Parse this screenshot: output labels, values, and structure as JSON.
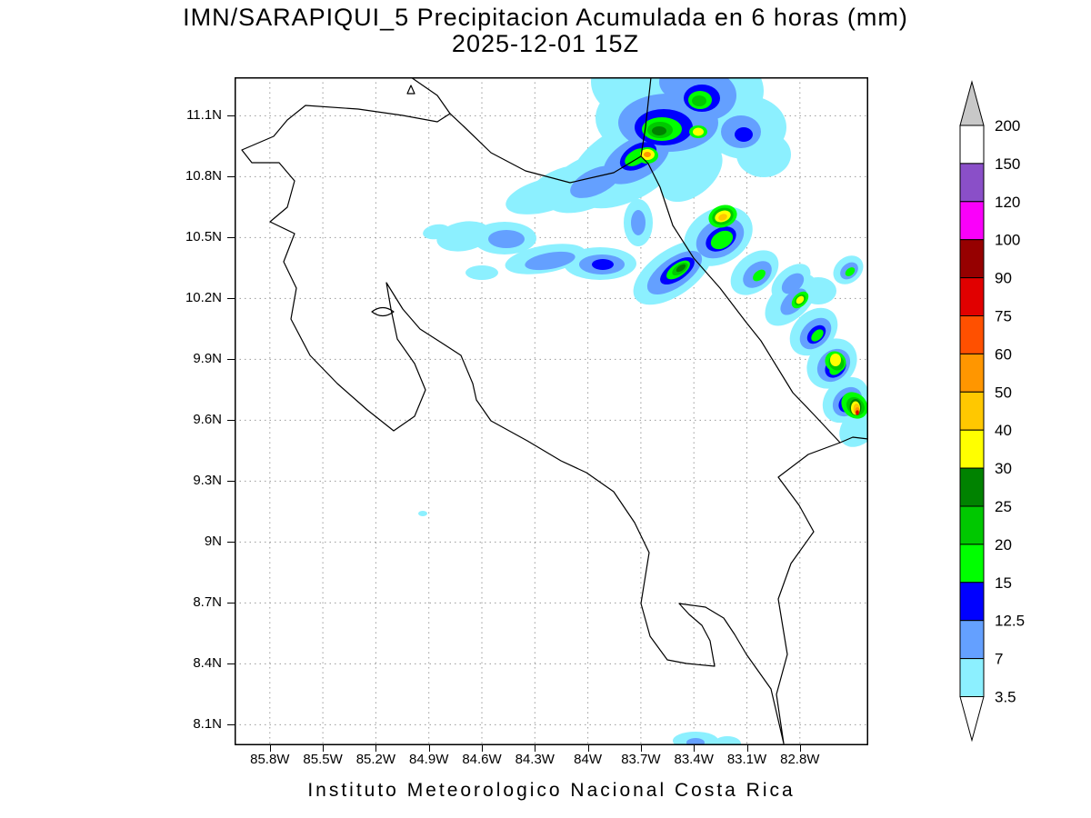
{
  "header": {
    "title_line1": "IMN/SARAPIQUI_5 Precipitacion Acumulada en 6 horas (mm)",
    "title_line2": "2025-12-01 15Z"
  },
  "footer": {
    "caption": "Instituto Meteorologico Nacional Costa Rica"
  },
  "chart_data": {
    "type": "heatmap",
    "title": "IMN/SARAPIQUI_5 Precipitacion Acumulada en 6 horas (mm)",
    "valid_time": "2025-12-01 15Z",
    "units": "mm",
    "region": "Costa Rica",
    "grid": true,
    "legend_position": "right",
    "xlabel_ticks": [
      "85.8W",
      "85.5W",
      "85.2W",
      "84.9W",
      "84.6W",
      "84.3W",
      "84W",
      "83.7W",
      "83.4W",
      "83.1W",
      "82.8W"
    ],
    "ylabel_ticks": [
      "11.1N",
      "10.8N",
      "10.5N",
      "10.2N",
      "9.9N",
      "9.6N",
      "9.3N",
      "9N",
      "8.7N",
      "8.4N",
      "8.1N"
    ],
    "colorbar": {
      "over_triangle_color": "#c8c8c8",
      "under_triangle_color": "#ffffff",
      "bottom_label": "3.5",
      "segments_top_to_bottom": [
        {
          "top_label": "200",
          "color": "#ffffff",
          "range_mm": "150-200"
        },
        {
          "top_label": "150",
          "color": "#8a4fc8",
          "range_mm": "120-150"
        },
        {
          "top_label": "120",
          "color": "#fa00fa",
          "range_mm": "100-120"
        },
        {
          "top_label": "100",
          "color": "#960000",
          "range_mm": "90-100"
        },
        {
          "top_label": "90",
          "color": "#e10000",
          "range_mm": "75-90"
        },
        {
          "top_label": "75",
          "color": "#ff5000",
          "range_mm": "60-75"
        },
        {
          "top_label": "60",
          "color": "#ff9600",
          "range_mm": "50-60"
        },
        {
          "top_label": "50",
          "color": "#ffc800",
          "range_mm": "40-50"
        },
        {
          "top_label": "40",
          "color": "#ffff00",
          "range_mm": "30-40"
        },
        {
          "top_label": "30",
          "color": "#008200",
          "range_mm": "25-30"
        },
        {
          "top_label": "25",
          "color": "#00c800",
          "range_mm": "20-25"
        },
        {
          "top_label": "20",
          "color": "#00ff00",
          "range_mm": "15-20"
        },
        {
          "top_label": "15",
          "color": "#0000ff",
          "range_mm": "12.5-15"
        },
        {
          "top_label": "12.5",
          "color": "#64a0ff",
          "range_mm": "7-12.5"
        },
        {
          "top_label": "7",
          "color": "#8cf0ff",
          "range_mm": "3.5-7"
        }
      ]
    }
  },
  "map": {
    "coastline_color": "#000000",
    "grid_color": "#9a9a9a",
    "palette": {
      "cyan": "#8cf0ff",
      "mblue": "#64a0ff",
      "blue": "#0000ff",
      "bgreen": "#00ff00",
      "green": "#00c800",
      "dgreen": "#008200",
      "yellow": "#ffff00",
      "amber": "#ffc800",
      "orange": "#ff9600",
      "red": "#e10000"
    },
    "coastlines": [
      "M58,47 L78,31 L136,35 L185,42 L223,49 L237,40 L252,54 L282,83 L320,103 L369,116 L417,105 L447,87 L455,95 L468,121 L482,163 L505,199 L534,232 L563,270 L579,290 L614,347 L637,371 L666,402 L631,415 L598,440 L621,471 L637,500 L612,535 L598,574 L608,635 L596,679 L604,733 L590,673 L563,635 L550,613 L538,595 L518,583 L489,579 L500,591 L514,603 L523,620 L528,648 L497,645 L476,641 L457,615 L447,579 L456,523 L440,490 L417,456 L387,435 L359,422 L322,400 L282,378 L266,355 L262,337 L249,306 L229,293 L204,277 L185,255 L167,226 L172,255 L179,288 L198,315 L210,344 L198,373 L175,389 L146,366 L113,337 L83,306 L62,266 L68,232 L54,203 L66,172 L39,159 L58,143 L66,114 L49,94 L19,94 L8,80 L43,65 Z",
      "M237,40 L223,20 L194,0",
      "M447,87 L452,55 L458,0",
      "M666,402 L680,396 L697,398",
      "M151,258 Q163,249 175,258 Q163,267 151,258 Z",
      "M190,18 L198,18 L194,9 Z"
    ],
    "blob_format": [
      "level",
      "cx",
      "cy",
      "rx",
      "ry",
      "rot_deg"
    ],
    "precip_blobs": [
      [
        "cyan",
        482,
        45,
        85,
        50,
        0
      ],
      [
        "cyan",
        522,
        15,
        60,
        45,
        0
      ],
      [
        "cyan",
        442,
        5,
        50,
        40,
        0
      ],
      [
        "cyan",
        562,
        55,
        45,
        35,
        0
      ],
      [
        "cyan",
        432,
        95,
        70,
        40,
        -30
      ],
      [
        "cyan",
        392,
        115,
        55,
        28,
        -25
      ],
      [
        "cyan",
        362,
        120,
        40,
        20,
        -20
      ],
      [
        "cyan",
        342,
        130,
        45,
        18,
        -15
      ],
      [
        "cyan",
        502,
        105,
        40,
        25,
        -40
      ],
      [
        "cyan",
        582,
        85,
        30,
        25,
        0
      ],
      [
        "cyan",
        444,
        160,
        16,
        26,
        0
      ],
      [
        "cyan",
        222,
        170,
        15,
        8,
        -10
      ],
      [
        "cyan",
        252,
        175,
        30,
        16,
        -10
      ],
      [
        "cyan",
        297,
        177,
        35,
        18,
        0
      ],
      [
        "cyan",
        342,
        200,
        45,
        15,
        -10
      ],
      [
        "cyan",
        402,
        205,
        40,
        18,
        0
      ],
      [
        "cyan",
        272,
        215,
        18,
        8,
        0
      ],
      [
        "cyan",
        482,
        215,
        50,
        25,
        -35
      ],
      [
        "cyan",
        532,
        175,
        40,
        30,
        -30
      ],
      [
        "cyan",
        572,
        215,
        30,
        20,
        -40
      ],
      [
        "cyan",
        612,
        225,
        25,
        15,
        -40
      ],
      [
        "cyan",
        612,
        245,
        35,
        20,
        -45
      ],
      [
        "cyan",
        637,
        280,
        30,
        22,
        -45
      ],
      [
        "cyan",
        657,
        315,
        30,
        25,
        -45
      ],
      [
        "cyan",
        672,
        355,
        28,
        22,
        -45
      ],
      [
        "cyan",
        687,
        385,
        25,
        18,
        -45
      ],
      [
        "cyan",
        642,
        235,
        20,
        15,
        0
      ],
      [
        "cyan",
        675,
        212,
        18,
        14,
        -40
      ],
      [
        "cyan",
        207,
        480,
        5,
        3,
        0
      ],
      [
        "cyan",
        507,
        730,
        25,
        10,
        0
      ],
      [
        "cyan",
        542,
        733,
        15,
        8,
        0
      ],
      [
        "mblue",
        477,
        50,
        55,
        32,
        0
      ],
      [
        "mblue",
        517,
        20,
        35,
        28,
        0
      ],
      [
        "mblue",
        497,
        5,
        30,
        22,
        0
      ],
      [
        "mblue",
        442,
        90,
        40,
        22,
        -30
      ],
      [
        "mblue",
        397,
        115,
        30,
        14,
        -25
      ],
      [
        "mblue",
        557,
        60,
        22,
        18,
        0
      ],
      [
        "mblue",
        444,
        160,
        8,
        14,
        0
      ],
      [
        "mblue",
        299,
        178,
        20,
        10,
        0
      ],
      [
        "mblue",
        347,
        202,
        28,
        9,
        -10
      ],
      [
        "mblue",
        404,
        206,
        25,
        11,
        0
      ],
      [
        "mblue",
        484,
        215,
        35,
        16,
        -35
      ],
      [
        "mblue",
        534,
        177,
        28,
        20,
        -30
      ],
      [
        "mblue",
        575,
        217,
        18,
        12,
        -40
      ],
      [
        "mblue",
        614,
        227,
        14,
        9,
        -40
      ],
      [
        "mblue",
        639,
        282,
        20,
        14,
        -45
      ],
      [
        "mblue",
        659,
        317,
        20,
        16,
        -45
      ],
      [
        "mblue",
        674,
        357,
        18,
        14,
        -45
      ],
      [
        "mblue",
        615,
        247,
        18,
        10,
        -45
      ],
      [
        "mblue",
        676,
        213,
        11,
        8,
        -40
      ],
      [
        "mblue",
        507,
        732,
        10,
        5,
        0
      ],
      [
        "blue",
        472,
        55,
        32,
        20,
        0
      ],
      [
        "blue",
        514,
        23,
        20,
        15,
        0
      ],
      [
        "blue",
        444,
        87,
        22,
        13,
        -30
      ],
      [
        "blue",
        560,
        63,
        10,
        8,
        0
      ],
      [
        "blue",
        487,
        213,
        22,
        10,
        -35
      ],
      [
        "blue",
        535,
        178,
        18,
        12,
        -30
      ],
      [
        "blue",
        405,
        206,
        12,
        6,
        0
      ],
      [
        "blue",
        640,
        283,
        12,
        8,
        -45
      ],
      [
        "blue",
        661,
        319,
        13,
        10,
        -45
      ],
      [
        "blue",
        675,
        358,
        12,
        9,
        -45
      ],
      [
        "bgreen",
        470,
        57,
        22,
        13,
        0
      ],
      [
        "bgreen",
        512,
        25,
        13,
        10,
        0
      ],
      [
        "bgreen",
        442,
        88,
        14,
        8,
        -30
      ],
      [
        "bgreen",
        454,
        86,
        12,
        9,
        0
      ],
      [
        "bgreen",
        510,
        60,
        10,
        7,
        0
      ],
      [
        "bgreen",
        488,
        212,
        15,
        7,
        -35
      ],
      [
        "bgreen",
        536,
        179,
        13,
        9,
        -30
      ],
      [
        "bgreen",
        537,
        153,
        16,
        12,
        -20
      ],
      [
        "bgreen",
        577,
        218,
        8,
        5,
        -40
      ],
      [
        "bgreen",
        641,
        284,
        8,
        5,
        -45
      ],
      [
        "bgreen",
        662,
        320,
        9,
        6,
        -45
      ],
      [
        "bgreen",
        661,
        313,
        11,
        12,
        -45
      ],
      [
        "bgreen",
        622,
        245,
        11,
        7,
        -45
      ],
      [
        "bgreen",
        682,
        361,
        13,
        16,
        -45
      ],
      [
        "bgreen",
        677,
        214,
        6,
        4,
        -40
      ],
      [
        "green",
        468,
        58,
        14,
        9,
        0
      ],
      [
        "green",
        511,
        26,
        8,
        6,
        0
      ],
      [
        "green",
        490,
        211,
        10,
        5,
        -35
      ],
      [
        "green",
        537,
        153,
        12,
        9,
        -20
      ],
      [
        "green",
        662,
        314,
        8,
        9,
        -45
      ],
      [
        "green",
        622,
        245,
        7,
        5,
        -45
      ],
      [
        "green",
        683,
        362,
        9,
        11,
        -45
      ],
      [
        "dgreen",
        467,
        59,
        8,
        5,
        0
      ],
      [
        "dgreen",
        491,
        210,
        6,
        3,
        -35
      ],
      [
        "dgreen",
        683,
        363,
        6.5,
        9,
        0
      ],
      [
        "yellow",
        454,
        85,
        8,
        6,
        0
      ],
      [
        "yellow",
        510,
        60,
        6,
        4.5,
        0
      ],
      [
        "yellow",
        537,
        153,
        9,
        6,
        -20
      ],
      [
        "yellow",
        622,
        245,
        5,
        3.5,
        -45
      ],
      [
        "yellow",
        661,
        311,
        6,
        7,
        0
      ],
      [
        "yellow",
        683,
        364,
        5,
        7.5,
        0
      ],
      [
        "amber",
        537,
        154,
        5,
        3.5,
        -20
      ],
      [
        "amber",
        684,
        365,
        3.5,
        6,
        0
      ],
      [
        "orange",
        454,
        85,
        4,
        3,
        0
      ],
      [
        "orange",
        685,
        367,
        2.5,
        4,
        0
      ],
      [
        "red",
        685,
        369,
        1.8,
        2.8,
        0
      ]
    ]
  }
}
